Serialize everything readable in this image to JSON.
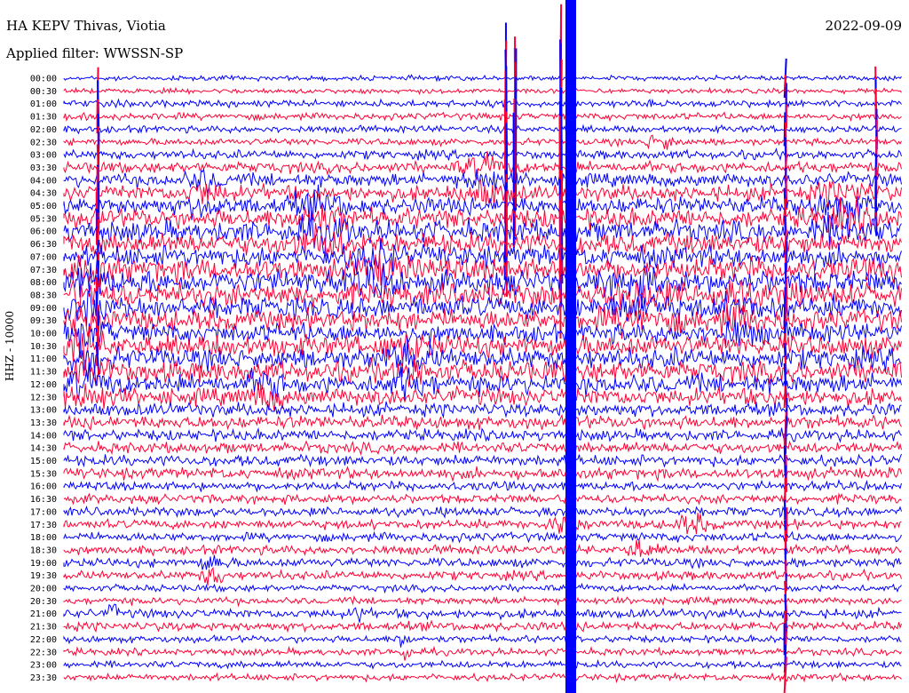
{
  "header": {
    "station": "HA KEPV Thivas, Viotia",
    "filter": "Applied filter: WWSSN-SP",
    "date": "2022-09-09",
    "channel": "HHZ - 10000"
  },
  "colors": {
    "trace_a": "#0000ff",
    "trace_b": "#ff0033"
  },
  "chart_data": {
    "type": "line",
    "title": "HA KEPV Thivas, Viotia",
    "subtitle": "Applied filter: WWSSN-SP",
    "ylabel": "HHZ - 10000",
    "grid": false,
    "row_labels": [
      "00:00",
      "00:30",
      "01:00",
      "01:30",
      "02:00",
      "02:30",
      "03:00",
      "03:30",
      "04:00",
      "04:30",
      "05:00",
      "05:30",
      "06:00",
      "06:30",
      "07:00",
      "07:30",
      "08:00",
      "08:30",
      "09:00",
      "09:30",
      "10:00",
      "10:30",
      "11:00",
      "11:30",
      "12:00",
      "12:30",
      "13:00",
      "13:30",
      "14:00",
      "14:30",
      "15:00",
      "15:30",
      "16:00",
      "16:30",
      "17:00",
      "17:30",
      "18:00",
      "18:30",
      "19:00",
      "19:30",
      "20:00",
      "20:30",
      "21:00",
      "21:30",
      "22:00",
      "22:30",
      "23:00",
      "23:30"
    ],
    "row_activity": [
      1,
      1,
      2,
      2,
      2,
      2,
      3,
      4,
      5,
      6,
      7,
      8,
      9,
      9,
      9,
      10,
      10,
      10,
      9,
      9,
      8,
      9,
      9,
      9,
      8,
      7,
      5,
      5,
      4,
      4,
      4,
      4,
      3,
      3,
      3,
      3,
      3,
      3,
      3,
      3,
      2,
      2,
      3,
      3,
      2,
      2,
      2,
      2
    ],
    "series": [
      {
        "name": "",
        "color": "#0000ff"
      },
      {
        "name": "",
        "color": "#ff0033"
      }
    ]
  }
}
